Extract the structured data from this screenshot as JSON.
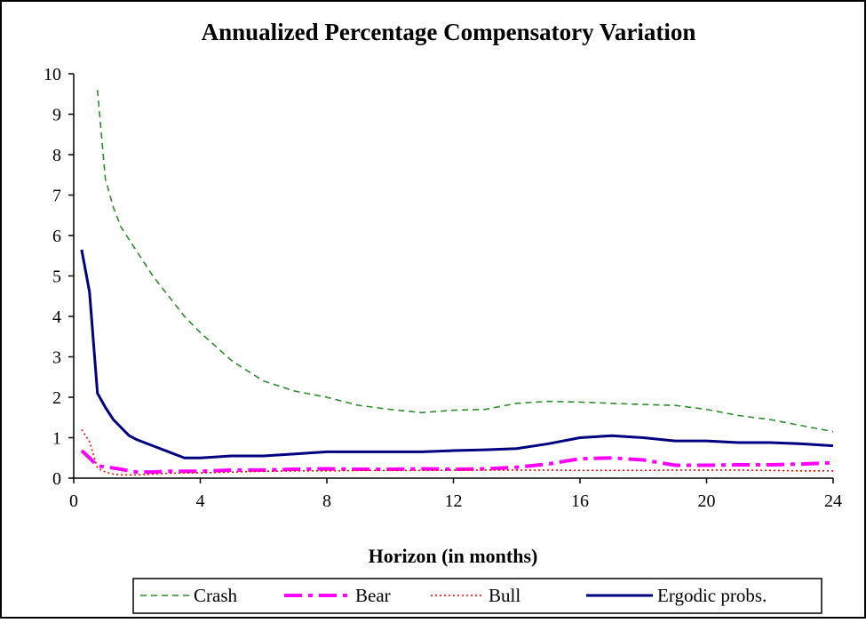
{
  "chart_data": {
    "type": "line",
    "title": "Annualized Percentage Compensatory Variation",
    "x_label": "Horizon (in months)",
    "x": [
      0.25,
      0.5,
      0.75,
      1,
      1.25,
      1.5,
      1.75,
      2,
      2.5,
      3,
      3.5,
      4,
      5,
      6,
      7,
      8,
      9,
      10,
      11,
      12,
      13,
      14,
      15,
      16,
      17,
      18,
      19,
      20,
      21,
      22,
      23,
      24
    ],
    "series": [
      {
        "name": "Crash",
        "color": "#2e8b2e",
        "values": [
          null,
          null,
          9.6,
          7.4,
          6.7,
          6.2,
          5.9,
          5.6,
          5.0,
          4.5,
          4.0,
          3.6,
          2.9,
          2.4,
          2.15,
          2.0,
          1.8,
          1.7,
          1.62,
          1.68,
          1.7,
          1.85,
          1.9,
          1.88,
          1.85,
          1.82,
          1.8,
          1.7,
          1.55,
          1.45,
          1.3,
          1.15
        ]
      },
      {
        "name": "Bear",
        "color": "#ff00ff",
        "values": [
          0.68,
          0.5,
          0.3,
          0.28,
          0.25,
          0.22,
          0.18,
          0.15,
          0.15,
          0.17,
          0.17,
          0.17,
          0.2,
          0.2,
          0.22,
          0.23,
          0.22,
          0.22,
          0.23,
          0.22,
          0.23,
          0.27,
          0.35,
          0.48,
          0.5,
          0.45,
          0.32,
          0.32,
          0.33,
          0.33,
          0.35,
          0.38
        ]
      },
      {
        "name": "Bull",
        "color": "#ff0000",
        "values": [
          1.2,
          0.9,
          0.25,
          0.15,
          0.1,
          0.08,
          0.08,
          0.08,
          0.1,
          0.12,
          0.13,
          0.13,
          0.15,
          0.17,
          0.18,
          0.18,
          0.19,
          0.19,
          0.19,
          0.2,
          0.2,
          0.2,
          0.2,
          0.19,
          0.19,
          0.19,
          0.2,
          0.2,
          0.2,
          0.19,
          0.18,
          0.18
        ]
      },
      {
        "name": "Ergodic probs.",
        "color": "#000080",
        "values": [
          5.65,
          4.6,
          2.1,
          1.75,
          1.45,
          1.25,
          1.05,
          0.95,
          0.8,
          0.65,
          0.5,
          0.5,
          0.55,
          0.55,
          0.6,
          0.65,
          0.65,
          0.65,
          0.65,
          0.68,
          0.7,
          0.73,
          0.85,
          1.0,
          1.05,
          1.0,
          0.92,
          0.92,
          0.88,
          0.88,
          0.85,
          0.8
        ]
      }
    ],
    "xlim": [
      0,
      24
    ],
    "xticks": [
      0,
      4,
      8,
      12,
      16,
      20,
      24
    ],
    "ylim": [
      0,
      10
    ],
    "yticks": [
      0,
      1,
      2,
      3,
      4,
      5,
      6,
      7,
      8,
      9,
      10
    ],
    "legend": "bottom"
  }
}
